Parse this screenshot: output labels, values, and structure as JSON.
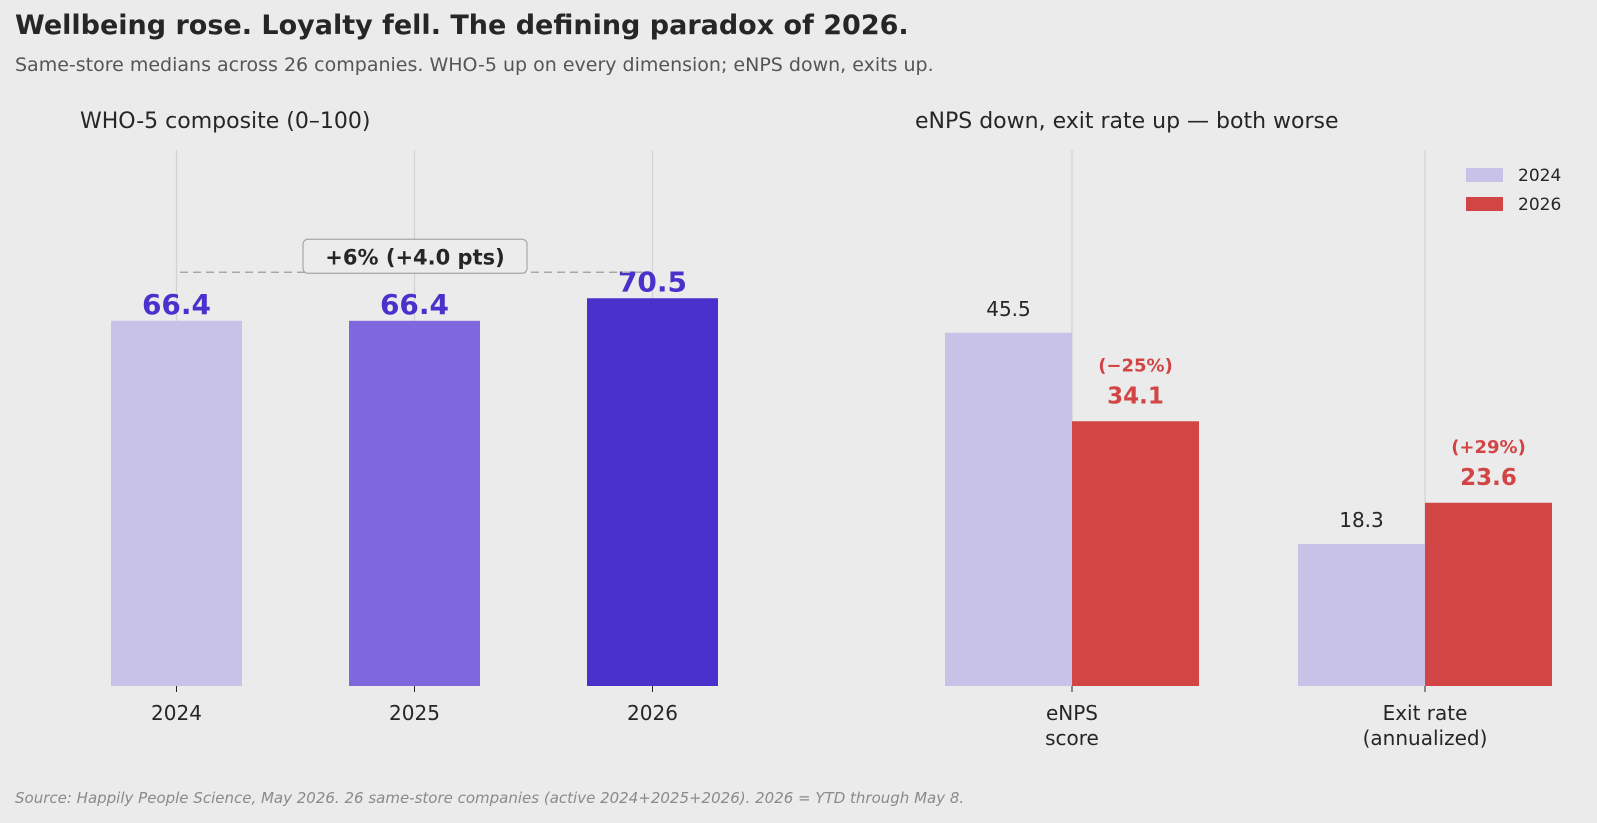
{
  "header": {
    "title": "Wellbeing rose. Loyalty fell. The defining paradox of 2026.",
    "subtitle": "Same-store medians across 26 companies. WHO-5 up on every dimension; eNPS down, exits up."
  },
  "footer": {
    "source": "Source: Happily People Science, May 2026. 26 same-store companies (active 2024+2025+2026). 2026 = YTD through May 8."
  },
  "chart_data": [
    {
      "type": "bar",
      "title": "WHO-5 composite (0–100)",
      "categories": [
        "2024",
        "2025",
        "2026"
      ],
      "values": [
        66.4,
        66.4,
        70.5
      ],
      "value_labels": [
        "66.4",
        "66.4",
        "70.5"
      ],
      "colors": [
        "#c8c1e8",
        "#7d69dd",
        "#4b31cc"
      ],
      "label_color": "#4b31cc",
      "annotation": "+6%   (+4.0 pts)",
      "ylim": [
        0,
        80
      ],
      "xlabel": "",
      "ylabel": "",
      "grid": "vertical"
    },
    {
      "type": "bar",
      "title": "eNPS down, exit rate up — both worse",
      "categories": [
        "eNPS\nscore",
        "Exit rate\n(annualized)"
      ],
      "series": [
        {
          "name": "2024",
          "color": "#c8c1e8",
          "values": [
            45.5,
            18.3
          ],
          "value_labels": [
            "45.5",
            "18.3"
          ]
        },
        {
          "name": "2026",
          "color": "#d14545",
          "values": [
            34.1,
            23.6
          ],
          "value_labels": [
            "34.1",
            "23.6"
          ],
          "change_labels": [
            "(−25%)",
            "(+29%)"
          ]
        }
      ],
      "ylim": [
        0,
        55
      ],
      "legend": "top-right",
      "xlabel": "",
      "ylabel": "",
      "grid": "vertical"
    }
  ]
}
